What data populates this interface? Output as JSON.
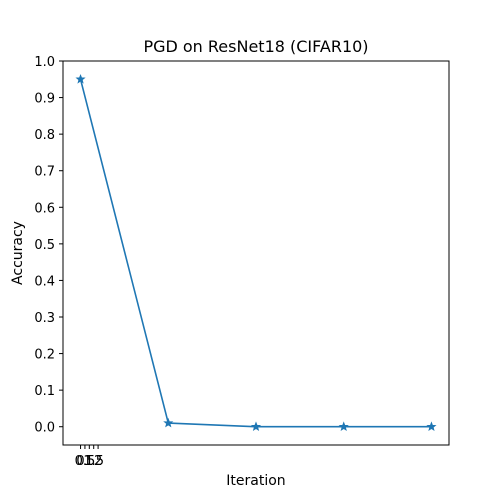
{
  "chart_data": {
    "type": "line",
    "title": "PGD on ResNet18 (CIFAR10)",
    "xlabel": "Iteration",
    "ylabel": "Accuracy",
    "x": [
      0,
      10,
      20,
      30,
      40
    ],
    "xlim": [
      -2,
      42
    ],
    "ylim": [
      -0.05,
      1.0
    ],
    "xtick_values": [
      0,
      0.5,
      1,
      1.5,
      2
    ],
    "xtick_labels": [
      "0",
      "0.5",
      "1",
      "1.5",
      "2"
    ],
    "ytick_values": [
      0.0,
      0.1,
      0.2,
      0.3,
      0.4,
      0.5,
      0.6,
      0.7,
      0.8,
      0.9,
      1.0
    ],
    "ytick_labels": [
      "0.0",
      "0.1",
      "0.2",
      "0.3",
      "0.4",
      "0.5",
      "0.6",
      "0.7",
      "0.8",
      "0.9",
      "1.0"
    ],
    "grid": false,
    "series": [
      {
        "values": [
          0.95,
          0.01,
          0.0,
          0.0,
          0.0
        ],
        "color": "#1f77b4",
        "marker": "star"
      }
    ]
  }
}
